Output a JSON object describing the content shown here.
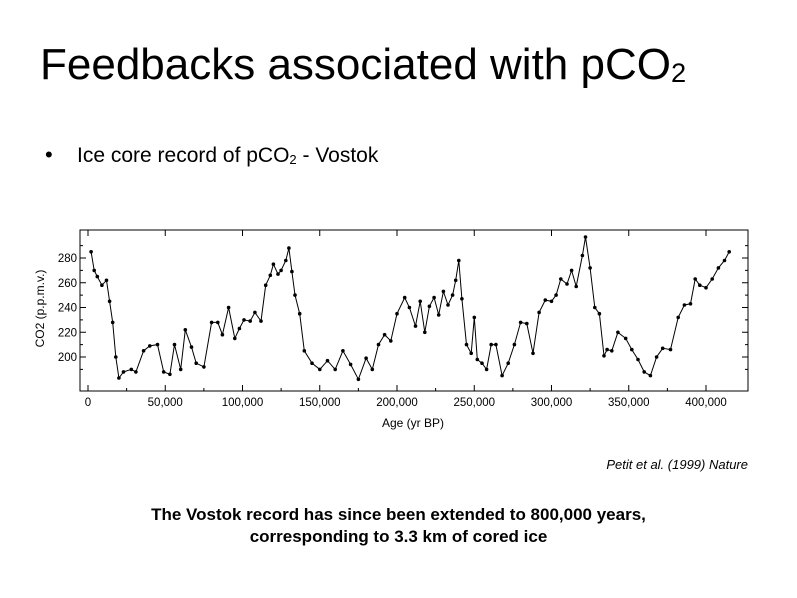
{
  "slide": {
    "title_main": "Feedbacks associated with pCO",
    "title_sub": "2",
    "bullet_main": "Ice core record of pCO",
    "bullet_sub": "2",
    "bullet_tail": " - Vostok",
    "citation": "Petit et al. (1999) Nature",
    "note_line1": "The Vostok record has since been extended to 800,000 years,",
    "note_line2": "corresponding to 3.3 km of cored ice"
  },
  "chart_data": {
    "type": "line",
    "xlabel": "Age (yr BP)",
    "ylabel": "CO2 (p.p.m.v.)",
    "xlim": [
      0,
      420000
    ],
    "ylim": [
      170,
      300
    ],
    "xticks": [
      0,
      50000,
      100000,
      150000,
      200000,
      250000,
      300000,
      350000,
      400000
    ],
    "xtick_labels": [
      "0",
      "50,000",
      "100,000",
      "150,000",
      "200,000",
      "250,000",
      "300,000",
      "350,000",
      "400,000"
    ],
    "yticks": [
      200,
      220,
      240,
      260,
      280
    ],
    "ytick_labels": [
      "200",
      "220",
      "240",
      "260",
      "280"
    ],
    "line_color": "#000000",
    "series": [
      {
        "x": [
          2000,
          4000,
          6000,
          9000,
          12000,
          14000,
          16000,
          18000,
          20000,
          23000,
          28000,
          31000,
          36000,
          40000,
          45000,
          49000,
          53000,
          56000,
          60000,
          63000,
          67000,
          70000,
          75000,
          80000,
          84000,
          87000,
          91000,
          95000,
          98000,
          101000,
          105000,
          108000,
          112000,
          115000,
          118000,
          120000,
          123000,
          125000,
          128000,
          130000,
          132000,
          134000,
          137000,
          140000,
          145000,
          150000,
          155000,
          160000,
          165000,
          170000,
          175000,
          180000,
          184000,
          188000,
          192000,
          196000,
          200000,
          205000,
          208000,
          212000,
          215000,
          218000,
          221000,
          224000,
          227000,
          230000,
          233000,
          236000,
          238000,
          240000,
          242000,
          245000,
          248000,
          250000,
          252000,
          255000,
          258000,
          261000,
          264000,
          268000,
          272000,
          276000,
          280000,
          284000,
          288000,
          292000,
          296000,
          300000,
          303000,
          306000,
          310000,
          313000,
          316000,
          320000,
          322000,
          325000,
          328000,
          331000,
          334000,
          336000,
          339000,
          343000,
          348000,
          352000,
          356000,
          360000,
          364000,
          368000,
          372000,
          377000,
          382000,
          386000,
          390000,
          393000,
          396000,
          400000,
          404000,
          408000,
          412000,
          415000
        ],
        "y": [
          285,
          270,
          265,
          258,
          262,
          245,
          228,
          200,
          183,
          188,
          190,
          188,
          205,
          209,
          210,
          188,
          186,
          210,
          190,
          222,
          208,
          195,
          192,
          228,
          228,
          218,
          240,
          215,
          223,
          230,
          229,
          236,
          229,
          258,
          266,
          275,
          267,
          270,
          278,
          288,
          269,
          250,
          235,
          205,
          195,
          190,
          197,
          190,
          205,
          194,
          182,
          199,
          190,
          210,
          218,
          213,
          235,
          248,
          240,
          225,
          245,
          220,
          241,
          248,
          234,
          253,
          242,
          250,
          262,
          278,
          247,
          210,
          203,
          232,
          198,
          195,
          190,
          210,
          210,
          185,
          195,
          210,
          228,
          227,
          203,
          236,
          246,
          245,
          250,
          263,
          259,
          270,
          257,
          282,
          297,
          272,
          240,
          235,
          201,
          206,
          205,
          220,
          215,
          206,
          198,
          188,
          185,
          200,
          207,
          206,
          232,
          242,
          243,
          263,
          258,
          256,
          263,
          272,
          278,
          285
        ]
      }
    ]
  }
}
